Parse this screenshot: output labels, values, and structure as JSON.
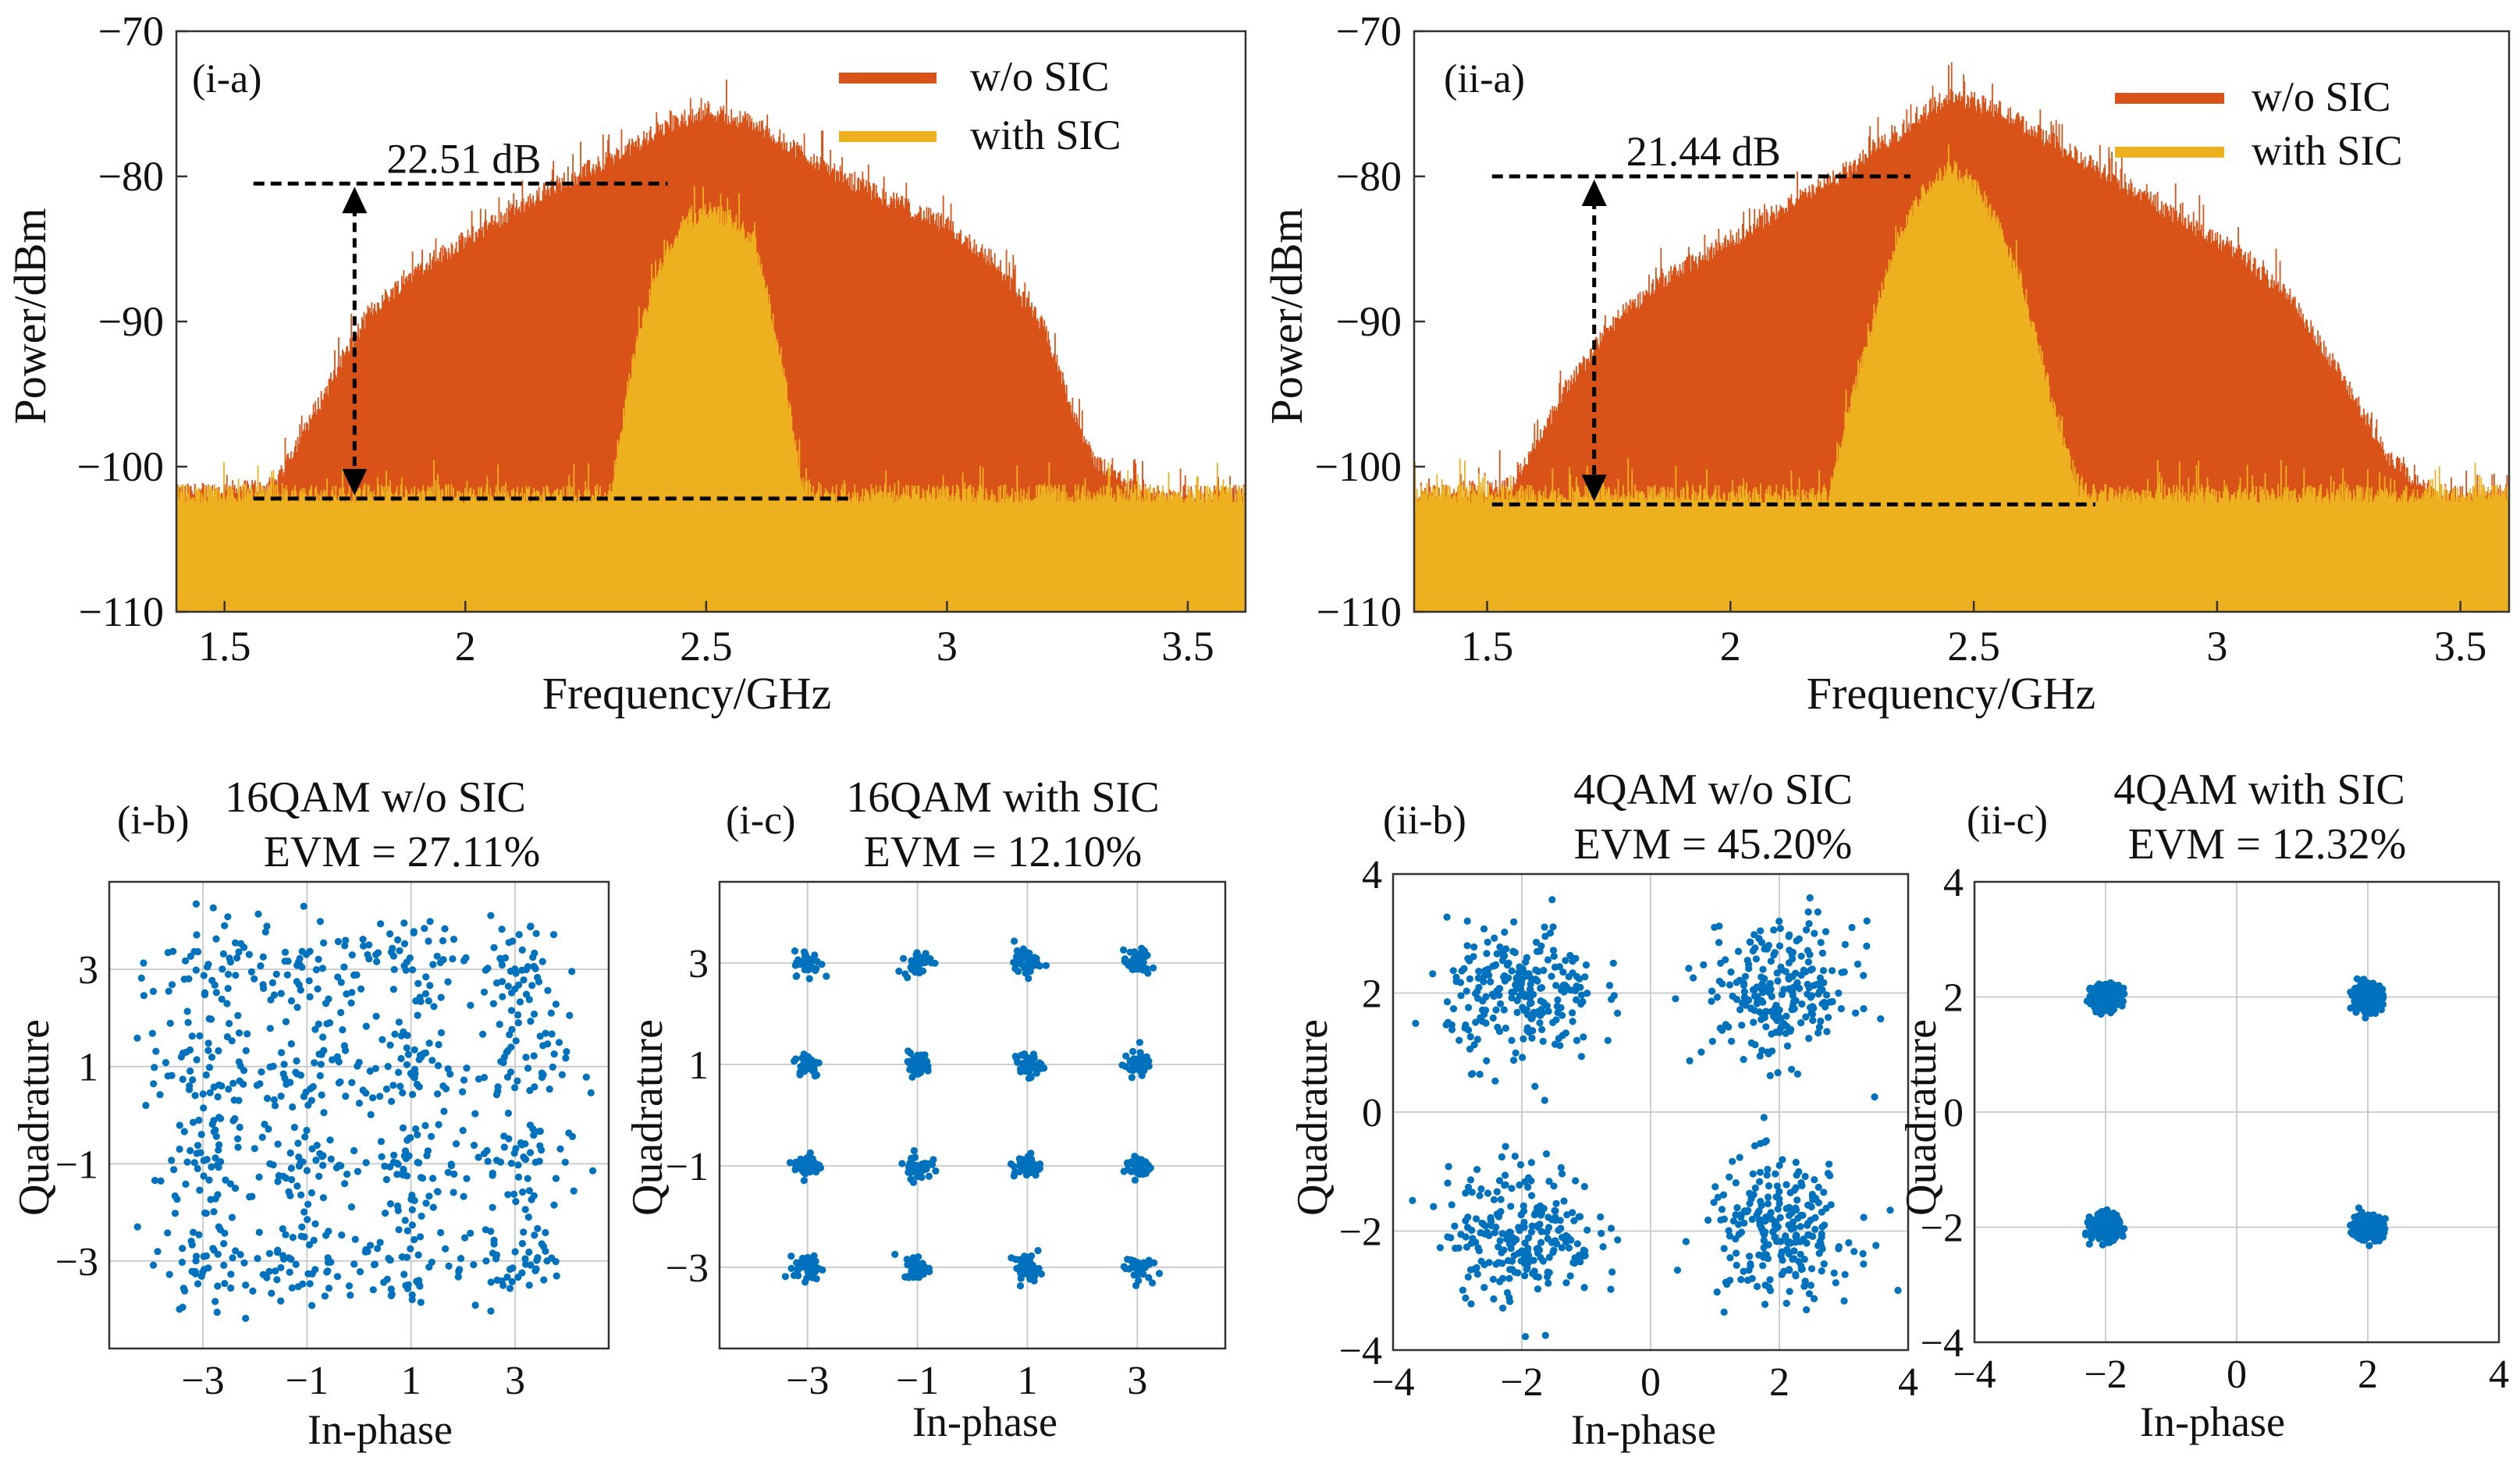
{
  "figure": {
    "spectra": [
      {
        "panel_label": "(i-a)",
        "ylabel": "Power/dBm",
        "xlabel": "Frequency/GHz",
        "legend": [
          "w/o SIC",
          "with SIC"
        ],
        "colors": {
          "without": "#D95319",
          "with": "#EDB120"
        },
        "annotation": "22.51 dB"
      },
      {
        "panel_label": "(ii-a)",
        "ylabel": "Power/dBm",
        "xlabel": "Frequency/GHz",
        "legend": [
          "w/o SIC",
          "with SIC"
        ],
        "colors": {
          "without": "#D95319",
          "with": "#EDB120"
        },
        "annotation": "21.44 dB"
      }
    ],
    "constellations": [
      {
        "panel_label": "(i-b)",
        "title": "16QAM w/o SIC",
        "evm": "EVM = 27.11%",
        "xlabel": "In-phase",
        "ylabel": "Quadrature"
      },
      {
        "panel_label": "(i-c)",
        "title": "16QAM with SIC",
        "evm": "EVM = 12.10%",
        "xlabel": "In-phase",
        "ylabel": "Quadrature"
      },
      {
        "panel_label": "(ii-b)",
        "title": "4QAM w/o SIC",
        "evm": "EVM = 45.20%",
        "xlabel": "In-phase",
        "ylabel": "Quadrature"
      },
      {
        "panel_label": "(ii-c)",
        "title": "4QAM with SIC",
        "evm": "EVM = 12.32%",
        "xlabel": "In-phase",
        "ylabel": "Quadrature"
      }
    ]
  },
  "chart_data": [
    {
      "id": "i-a",
      "type": "area",
      "title": "(i-a)",
      "xlabel": "Frequency/GHz",
      "ylabel": "Power/dBm",
      "xlim": [
        1.4,
        3.62
      ],
      "ylim": [
        -110,
        -70
      ],
      "xticks": [
        1.5,
        2,
        2.5,
        3,
        3.5
      ],
      "xtick_labels": [
        "1.5",
        "2",
        "2.5",
        "3",
        "3.5"
      ],
      "yticks": [
        -110,
        -100,
        -90,
        -80,
        -70
      ],
      "ytick_labels": [
        "−110",
        "−100",
        "−90",
        "−80",
        "−70"
      ],
      "legend_position": "top-right",
      "series": [
        {
          "name": "w/o SIC",
          "color": "#D95319",
          "envelope_x": [
            1.4,
            1.6,
            1.7,
            1.8,
            1.9,
            2.0,
            2.1,
            2.2,
            2.3,
            2.4,
            2.5,
            2.6,
            2.7,
            2.8,
            2.9,
            3.0,
            3.1,
            3.2,
            3.3,
            3.4,
            3.5,
            3.62
          ],
          "envelope_y": [
            -102.5,
            -102,
            -96,
            -90,
            -87,
            -85,
            -83,
            -81,
            -79.5,
            -77.5,
            -76,
            -77,
            -79,
            -81,
            -82.5,
            -84,
            -86.5,
            -91,
            -100,
            -102.5,
            -102.5,
            -102.5
          ]
        },
        {
          "name": "with SIC",
          "color": "#EDB120",
          "envelope_x": [
            1.4,
            2.3,
            2.35,
            2.4,
            2.45,
            2.5,
            2.55,
            2.6,
            2.65,
            2.7,
            2.75,
            3.62
          ],
          "envelope_y": [
            -102.5,
            -102.5,
            -93,
            -87,
            -84,
            -83,
            -83.5,
            -85,
            -92,
            -102,
            -102.5,
            -102.5
          ]
        }
      ],
      "annotations": [
        {
          "text": "22.51 dB",
          "from_y": -80.5,
          "to_y": -102.2,
          "at_x": 1.77
        }
      ]
    },
    {
      "id": "ii-a",
      "type": "area",
      "title": "(ii-a)",
      "xlabel": "Frequency/GHz",
      "ylabel": "Power/dBm",
      "xlim": [
        1.35,
        3.6
      ],
      "ylim": [
        -110,
        -70
      ],
      "xticks": [
        1.5,
        2,
        2.5,
        3,
        3.5
      ],
      "xtick_labels": [
        "1.5",
        "2",
        "2.5",
        "3",
        "3.5"
      ],
      "yticks": [
        -110,
        -100,
        -90,
        -80,
        -70
      ],
      "ytick_labels": [
        "−110",
        "−100",
        "−90",
        "−80",
        "−70"
      ],
      "legend_position": "top-right",
      "series": [
        {
          "name": "w/o SIC",
          "color": "#D95319",
          "envelope_x": [
            1.35,
            1.55,
            1.65,
            1.75,
            1.85,
            1.95,
            2.05,
            2.15,
            2.25,
            2.35,
            2.45,
            2.55,
            2.65,
            2.75,
            2.85,
            2.95,
            3.05,
            3.15,
            3.25,
            3.35,
            3.45,
            3.6
          ],
          "envelope_y": [
            -102.5,
            -102,
            -96,
            -91,
            -88,
            -86,
            -84,
            -82,
            -80,
            -77.5,
            -75,
            -76,
            -78,
            -80,
            -82,
            -84,
            -86,
            -89,
            -94,
            -100,
            -102.5,
            -102.5
          ]
        },
        {
          "name": "with SIC",
          "color": "#EDB120",
          "envelope_x": [
            1.35,
            2.2,
            2.28,
            2.34,
            2.4,
            2.45,
            2.5,
            2.55,
            2.6,
            2.66,
            2.72,
            3.6
          ],
          "envelope_y": [
            -102.5,
            -102.5,
            -92,
            -85,
            -81.5,
            -80,
            -81,
            -84,
            -88,
            -96,
            -102.5,
            -102.5
          ]
        }
      ],
      "annotations": [
        {
          "text": "21.44 dB",
          "from_y": -80,
          "to_y": -102.6,
          "at_x": 1.72
        }
      ]
    },
    {
      "id": "i-b",
      "type": "scatter",
      "title": "16QAM w/o SIC",
      "xlabel": "In-phase",
      "ylabel": "Quadrature",
      "xlim": [
        -4.8,
        4.8
      ],
      "ylim": [
        -4.8,
        4.8
      ],
      "xticks": [
        -3,
        -1,
        1,
        3
      ],
      "yticks": [
        -3,
        -1,
        1,
        3
      ],
      "xtick_labels": [
        "−3",
        "−1",
        "1",
        "3"
      ],
      "ytick_labels": [
        "−3",
        "−1",
        "1",
        "3"
      ],
      "centers": [
        -3,
        -1,
        1,
        3
      ],
      "points_per_symbol": 52,
      "spread": 0.95,
      "evm_percent": 27.11
    },
    {
      "id": "i-c",
      "type": "scatter",
      "title": "16QAM with SIC",
      "xlabel": "In-phase",
      "ylabel": "Quadrature",
      "xlim": [
        -4.6,
        4.6
      ],
      "ylim": [
        -4.6,
        4.6
      ],
      "xticks": [
        -3,
        -1,
        1,
        3
      ],
      "yticks": [
        -3,
        -1,
        1,
        3
      ],
      "xtick_labels": [
        "−3",
        "−1",
        "1",
        "3"
      ],
      "ytick_labels": [
        "−3",
        "−1",
        "1",
        "3"
      ],
      "centers": [
        -3,
        -1,
        1,
        3
      ],
      "points_per_symbol": 45,
      "spread": 0.22,
      "evm_percent": 12.1
    },
    {
      "id": "ii-b",
      "type": "scatter",
      "title": "4QAM w/o SIC",
      "xlabel": "In-phase",
      "ylabel": "Quadrature",
      "xlim": [
        -4,
        4
      ],
      "ylim": [
        -4,
        4
      ],
      "xticks": [
        -4,
        -2,
        0,
        2,
        4
      ],
      "yticks": [
        -4,
        -2,
        0,
        2,
        4
      ],
      "xtick_labels": [
        "−4",
        "−2",
        "0",
        "2",
        "4"
      ],
      "ytick_labels": [
        "−4",
        "−2",
        "0",
        "2",
        "4"
      ],
      "centers": [
        -2,
        2
      ],
      "points_per_symbol": 240,
      "spread": 1.05,
      "evm_percent": 45.2
    },
    {
      "id": "ii-c",
      "type": "scatter",
      "title": "4QAM with SIC",
      "xlabel": "In-phase",
      "ylabel": "Quadrature",
      "xlim": [
        -4,
        4
      ],
      "ylim": [
        -4,
        4
      ],
      "xticks": [
        -4,
        -2,
        0,
        2,
        4
      ],
      "yticks": [
        -4,
        -2,
        0,
        2,
        4
      ],
      "xtick_labels": [
        "−4",
        "−2",
        "0",
        "2",
        "4"
      ],
      "ytick_labels": [
        "−4",
        "−2",
        "0",
        "2",
        "4"
      ],
      "centers": [
        -2,
        2
      ],
      "points_per_symbol": 260,
      "spread": 0.2,
      "evm_percent": 12.32
    }
  ]
}
